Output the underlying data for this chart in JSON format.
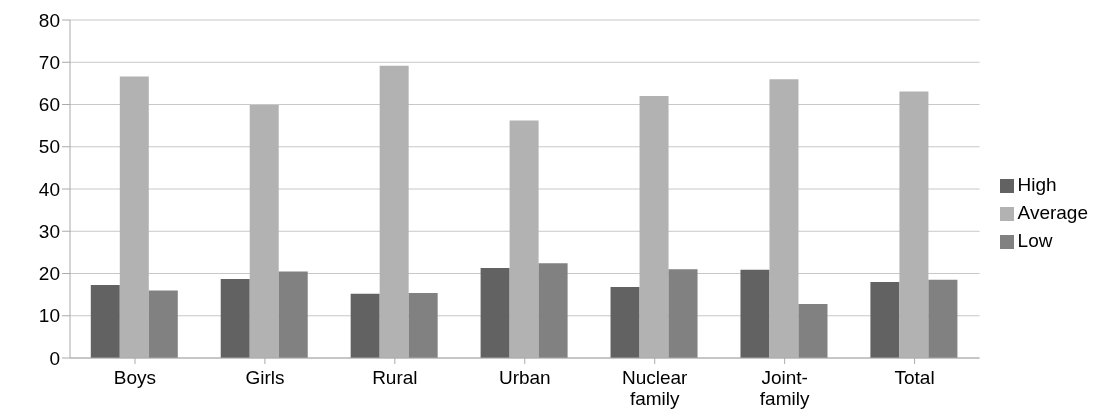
{
  "chart_data": {
    "type": "bar",
    "categories": [
      "Boys",
      "Girls",
      "Rural",
      "Urban",
      "Nuclear family",
      "Joint-family",
      "Total"
    ],
    "series": [
      {
        "name": "High",
        "color": "#626262",
        "values": [
          17.3,
          18.7,
          15.2,
          21.3,
          16.8,
          20.9,
          18.0
        ]
      },
      {
        "name": "Average",
        "color": "#b2b2b2",
        "values": [
          66.6,
          59.9,
          69.2,
          56.2,
          62.0,
          66.0,
          63.1
        ]
      },
      {
        "name": "Low",
        "color": "#818181",
        "values": [
          16.0,
          20.5,
          15.4,
          22.4,
          21.0,
          12.8,
          18.5
        ]
      }
    ],
    "ylim": [
      0,
      80
    ],
    "yticks": [
      0,
      10,
      20,
      30,
      40,
      50,
      60,
      70,
      80
    ],
    "grid": "y",
    "legend": "right"
  }
}
